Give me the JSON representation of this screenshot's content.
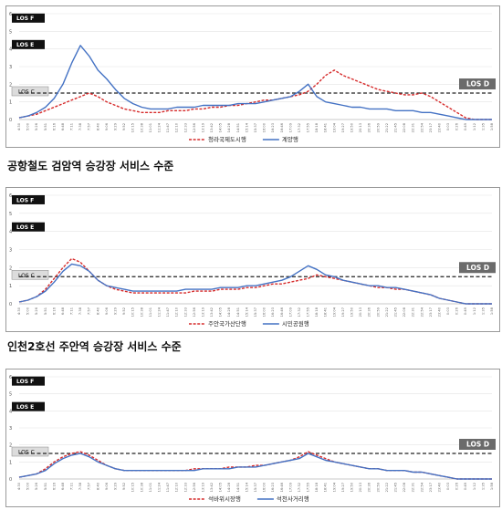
{
  "chart_data": [
    {
      "type": "line",
      "caption": "공항철도 검암역 승강장 서비스 수준",
      "yticks": [
        0,
        1,
        2,
        3,
        4,
        5,
        6
      ],
      "ylim": [
        0,
        6
      ],
      "los_levels": {
        "F": "LOS F",
        "E": "LOS E",
        "C": "LOS C",
        "D": "LOS D"
      },
      "threshold": 1.5,
      "x": [
        "4:30",
        "5:00",
        "5:26",
        "5:51",
        "6:16",
        "6:48",
        "7:11",
        "7:38",
        "7:57",
        "8:40",
        "9:06",
        "9:29",
        "9:52",
        "10:15",
        "10:38",
        "11:01",
        "11:24",
        "11:47",
        "12:10",
        "12:33",
        "12:56",
        "13:19",
        "13:42",
        "14:05",
        "14:28",
        "14:51",
        "15:14",
        "15:37",
        "16:00",
        "16:23",
        "16:46",
        "17:09",
        "17:32",
        "17:55",
        "18:18",
        "18:41",
        "19:04",
        "19:27",
        "19:50",
        "20:13",
        "20:36",
        "20:59",
        "21:22",
        "21:45",
        "22:08",
        "22:31",
        "22:54",
        "23:17",
        "23:40",
        "0:03",
        "0:26",
        "0:49",
        "1:12",
        "1:35",
        "1:58"
      ],
      "series": [
        {
          "name": "청라국제도시행",
          "color": "#d62b2b",
          "dash": true,
          "values": [
            0.1,
            0.2,
            0.3,
            0.5,
            0.7,
            0.9,
            1.1,
            1.3,
            1.5,
            1.3,
            1.0,
            0.8,
            0.6,
            0.5,
            0.4,
            0.4,
            0.4,
            0.5,
            0.5,
            0.5,
            0.6,
            0.6,
            0.7,
            0.7,
            0.8,
            0.8,
            0.9,
            1.0,
            1.1,
            1.1,
            1.2,
            1.3,
            1.4,
            1.6,
            2.0,
            2.5,
            2.8,
            2.5,
            2.3,
            2.1,
            1.9,
            1.7,
            1.6,
            1.5,
            1.4,
            1.4,
            1.5,
            1.3,
            1.0,
            0.7,
            0.4,
            0.1,
            0.0,
            0.0,
            0.0
          ]
        },
        {
          "name": "계양행",
          "color": "#4472c4",
          "dash": false,
          "values": [
            0.1,
            0.2,
            0.4,
            0.7,
            1.2,
            2.0,
            3.2,
            4.2,
            3.6,
            2.8,
            2.3,
            1.7,
            1.2,
            0.9,
            0.7,
            0.6,
            0.6,
            0.6,
            0.7,
            0.7,
            0.7,
            0.8,
            0.8,
            0.8,
            0.8,
            0.9,
            0.9,
            0.9,
            1.0,
            1.1,
            1.2,
            1.3,
            1.6,
            2.0,
            1.3,
            1.0,
            0.9,
            0.8,
            0.7,
            0.7,
            0.6,
            0.6,
            0.6,
            0.5,
            0.5,
            0.5,
            0.4,
            0.4,
            0.3,
            0.2,
            0.1,
            0.0,
            0.0,
            0.0,
            0.0
          ]
        }
      ]
    },
    {
      "type": "line",
      "caption": "인천2호선 주안역 승강장 서비스 수준",
      "yticks": [
        0,
        1,
        2,
        3,
        4,
        5,
        6
      ],
      "ylim": [
        0,
        6
      ],
      "los_levels": {
        "F": "LOS F",
        "E": "LOS E",
        "C": "LOS C",
        "D": "LOS D"
      },
      "threshold": 1.5,
      "x": [
        "4:30",
        "5:00",
        "5:26",
        "5:51",
        "6:16",
        "6:48",
        "7:11",
        "7:38",
        "7:57",
        "8:40",
        "9:06",
        "9:29",
        "9:52",
        "10:15",
        "10:38",
        "11:01",
        "11:24",
        "11:47",
        "12:10",
        "12:33",
        "12:56",
        "13:19",
        "13:42",
        "14:05",
        "14:28",
        "14:51",
        "15:14",
        "15:37",
        "16:00",
        "16:23",
        "16:46",
        "17:09",
        "17:32",
        "17:55",
        "18:18",
        "18:41",
        "19:04",
        "19:27",
        "19:50",
        "20:13",
        "20:36",
        "20:59",
        "21:22",
        "21:45",
        "22:08",
        "22:31",
        "22:54",
        "23:17",
        "23:40",
        "0:03",
        "0:26",
        "0:49",
        "1:12",
        "1:35",
        "1:58"
      ],
      "series": [
        {
          "name": "주안국가산단행",
          "color": "#d62b2b",
          "dash": true,
          "values": [
            0.1,
            0.2,
            0.4,
            0.8,
            1.4,
            2.0,
            2.5,
            2.3,
            1.8,
            1.3,
            1.0,
            0.8,
            0.7,
            0.6,
            0.6,
            0.6,
            0.6,
            0.6,
            0.6,
            0.6,
            0.7,
            0.7,
            0.7,
            0.8,
            0.8,
            0.8,
            0.9,
            0.9,
            1.0,
            1.1,
            1.1,
            1.2,
            1.3,
            1.4,
            1.6,
            1.5,
            1.4,
            1.3,
            1.2,
            1.1,
            1.0,
            0.9,
            0.9,
            0.8,
            0.8,
            0.7,
            0.6,
            0.5,
            0.3,
            0.2,
            0.1,
            0.0,
            0.0,
            0.0,
            0.0
          ]
        },
        {
          "name": "시민공원행",
          "color": "#4472c4",
          "dash": false,
          "values": [
            0.1,
            0.2,
            0.4,
            0.7,
            1.2,
            1.8,
            2.2,
            2.1,
            1.8,
            1.3,
            1.0,
            0.9,
            0.8,
            0.7,
            0.7,
            0.7,
            0.7,
            0.7,
            0.7,
            0.8,
            0.8,
            0.8,
            0.8,
            0.9,
            0.9,
            0.9,
            1.0,
            1.0,
            1.1,
            1.2,
            1.3,
            1.5,
            1.8,
            2.1,
            1.9,
            1.6,
            1.5,
            1.3,
            1.2,
            1.1,
            1.0,
            1.0,
            0.9,
            0.9,
            0.8,
            0.7,
            0.6,
            0.5,
            0.3,
            0.2,
            0.1,
            0.0,
            0.0,
            0.0,
            0.0
          ]
        }
      ]
    },
    {
      "type": "line",
      "caption": "",
      "yticks": [
        0,
        1,
        2,
        3,
        4,
        5,
        6
      ],
      "ylim": [
        0,
        6
      ],
      "los_levels": {
        "F": "LOS F",
        "E": "LOS E",
        "C": "LOS C",
        "D": "LOS D"
      },
      "threshold": 1.5,
      "x": [
        "4:30",
        "5:00",
        "5:26",
        "5:51",
        "6:16",
        "6:48",
        "7:11",
        "7:38",
        "7:57",
        "8:40",
        "9:06",
        "9:29",
        "9:52",
        "10:15",
        "10:38",
        "11:01",
        "11:24",
        "11:47",
        "12:10",
        "12:33",
        "12:56",
        "13:19",
        "13:42",
        "14:05",
        "14:28",
        "14:51",
        "15:14",
        "15:37",
        "16:00",
        "16:23",
        "16:46",
        "17:09",
        "17:32",
        "17:55",
        "18:18",
        "18:41",
        "19:04",
        "19:27",
        "19:50",
        "20:13",
        "20:36",
        "20:59",
        "21:22",
        "21:45",
        "22:08",
        "22:31",
        "22:54",
        "23:17",
        "23:40",
        "0:03",
        "0:26",
        "0:49",
        "1:12",
        "1:35",
        "1:58"
      ],
      "series": [
        {
          "name": "석바위시장행",
          "color": "#d62b2b",
          "dash": true,
          "values": [
            0.1,
            0.2,
            0.3,
            0.6,
            1.0,
            1.3,
            1.5,
            1.6,
            1.4,
            1.1,
            0.8,
            0.6,
            0.5,
            0.5,
            0.5,
            0.5,
            0.5,
            0.5,
            0.5,
            0.5,
            0.6,
            0.6,
            0.6,
            0.6,
            0.7,
            0.7,
            0.7,
            0.8,
            0.8,
            0.9,
            1.0,
            1.1,
            1.3,
            1.6,
            1.4,
            1.2,
            1.0,
            0.9,
            0.8,
            0.7,
            0.6,
            0.6,
            0.5,
            0.5,
            0.5,
            0.4,
            0.4,
            0.3,
            0.2,
            0.1,
            0.0,
            0.0,
            0.0,
            0.0,
            0.0
          ]
        },
        {
          "name": "석천사거리행",
          "color": "#4472c4",
          "dash": false,
          "values": [
            0.1,
            0.2,
            0.3,
            0.5,
            0.9,
            1.2,
            1.4,
            1.5,
            1.3,
            1.0,
            0.8,
            0.6,
            0.5,
            0.5,
            0.5,
            0.5,
            0.5,
            0.5,
            0.5,
            0.5,
            0.5,
            0.6,
            0.6,
            0.6,
            0.6,
            0.7,
            0.7,
            0.7,
            0.8,
            0.9,
            1.0,
            1.1,
            1.2,
            1.5,
            1.3,
            1.1,
            1.0,
            0.9,
            0.8,
            0.7,
            0.6,
            0.6,
            0.5,
            0.5,
            0.5,
            0.4,
            0.4,
            0.3,
            0.2,
            0.1,
            0.0,
            0.0,
            0.0,
            0.0,
            0.0
          ]
        }
      ]
    }
  ]
}
